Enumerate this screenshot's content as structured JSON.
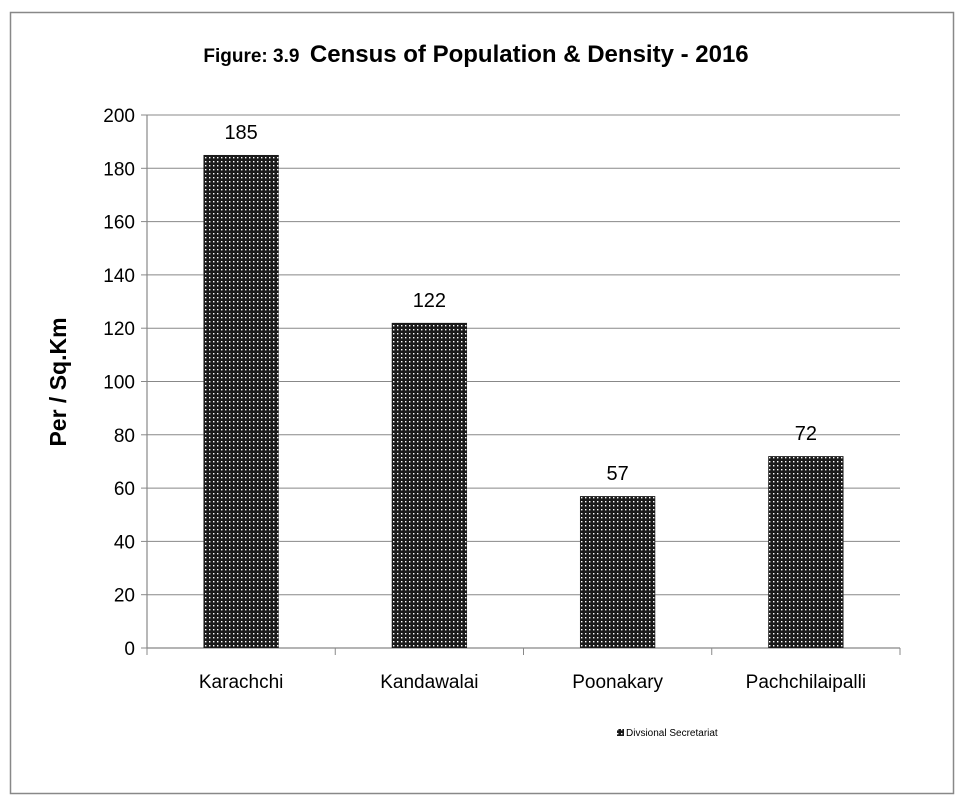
{
  "chart_data": {
    "type": "bar",
    "title_prefix": "Figure: 3.9",
    "title_main": "Census of Population & Density - 2016",
    "xlabel": "",
    "ylabel": "Per / Sq.Km",
    "categories": [
      "Karachchi",
      "Kandawalai",
      "Poonakary",
      "Pachchilaipalli"
    ],
    "series": [
      {
        "name": "Divsional Secretariat",
        "values": [
          185,
          122,
          57,
          72
        ]
      }
    ],
    "ylim": [
      0,
      200
    ],
    "yticks": [
      0,
      20,
      40,
      60,
      80,
      100,
      120,
      140,
      160,
      180,
      200
    ],
    "grid": true,
    "legend_position": "bottom-right",
    "colors": {
      "bar_fill": "#1a1a1a",
      "bar_dots": "#ffffff",
      "grid": "#888888",
      "axis": "#888888",
      "border": "#888888"
    }
  }
}
